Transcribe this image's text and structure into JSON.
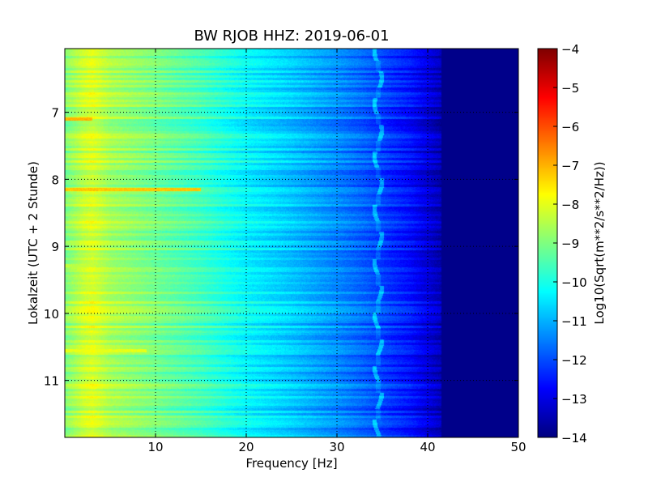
{
  "chart_data": {
    "type": "heatmap",
    "title": "BW RJOB HHZ: 2019-06-01",
    "xlabel": "Frequency [Hz]",
    "ylabel": "Lokalzeit (UTC + 2 Stunde)",
    "xlim": [
      0,
      50
    ],
    "ylim": [
      11.85,
      6.05
    ],
    "x_ticks": [
      10,
      20,
      30,
      40,
      50
    ],
    "y_ticks": [
      7,
      8,
      9,
      10,
      11
    ],
    "y_axis_inverted": true,
    "grid": true,
    "colormap": "jet",
    "colorbar": {
      "label": "Log10(Sqrt(m**2/s**2/Hz))",
      "range": [
        -14,
        -4
      ],
      "ticks": [
        -4,
        -5,
        -6,
        -7,
        -8,
        -9,
        -10,
        -11,
        -12,
        -13,
        -14
      ]
    },
    "data_cutoff_hz": 41.5,
    "floor_value": -13.9,
    "spectral_profile": {
      "frequency_hz": [
        0,
        2,
        3,
        5,
        10,
        15,
        20,
        25,
        30,
        33,
        36,
        38,
        40,
        41.5
      ],
      "log10_amplitude": [
        -9.0,
        -8.3,
        -8.1,
        -8.6,
        -9.1,
        -9.6,
        -10.3,
        -10.8,
        -11.4,
        -11.8,
        -12.3,
        -12.6,
        -13.1,
        -13.5
      ]
    },
    "noise_line_hz": 34.5,
    "noise_line_times": [
      6.1,
      6.5,
      6.9,
      7.3,
      7.7,
      8.1,
      8.5,
      8.9,
      9.3,
      9.7,
      10.1,
      10.5,
      10.9,
      11.3,
      11.7
    ],
    "high_energy_events": [
      {
        "time": 7.1,
        "freq_max_hz": 3,
        "log10_amplitude": -7.0
      },
      {
        "time": 8.15,
        "freq_max_hz": 15,
        "log10_amplitude": -7.2
      },
      {
        "time": 10.55,
        "freq_max_hz": 9,
        "log10_amplitude": -8.0
      },
      {
        "time": 9.28,
        "freq_max_hz": 3,
        "log10_amplitude": -8.4
      }
    ]
  }
}
